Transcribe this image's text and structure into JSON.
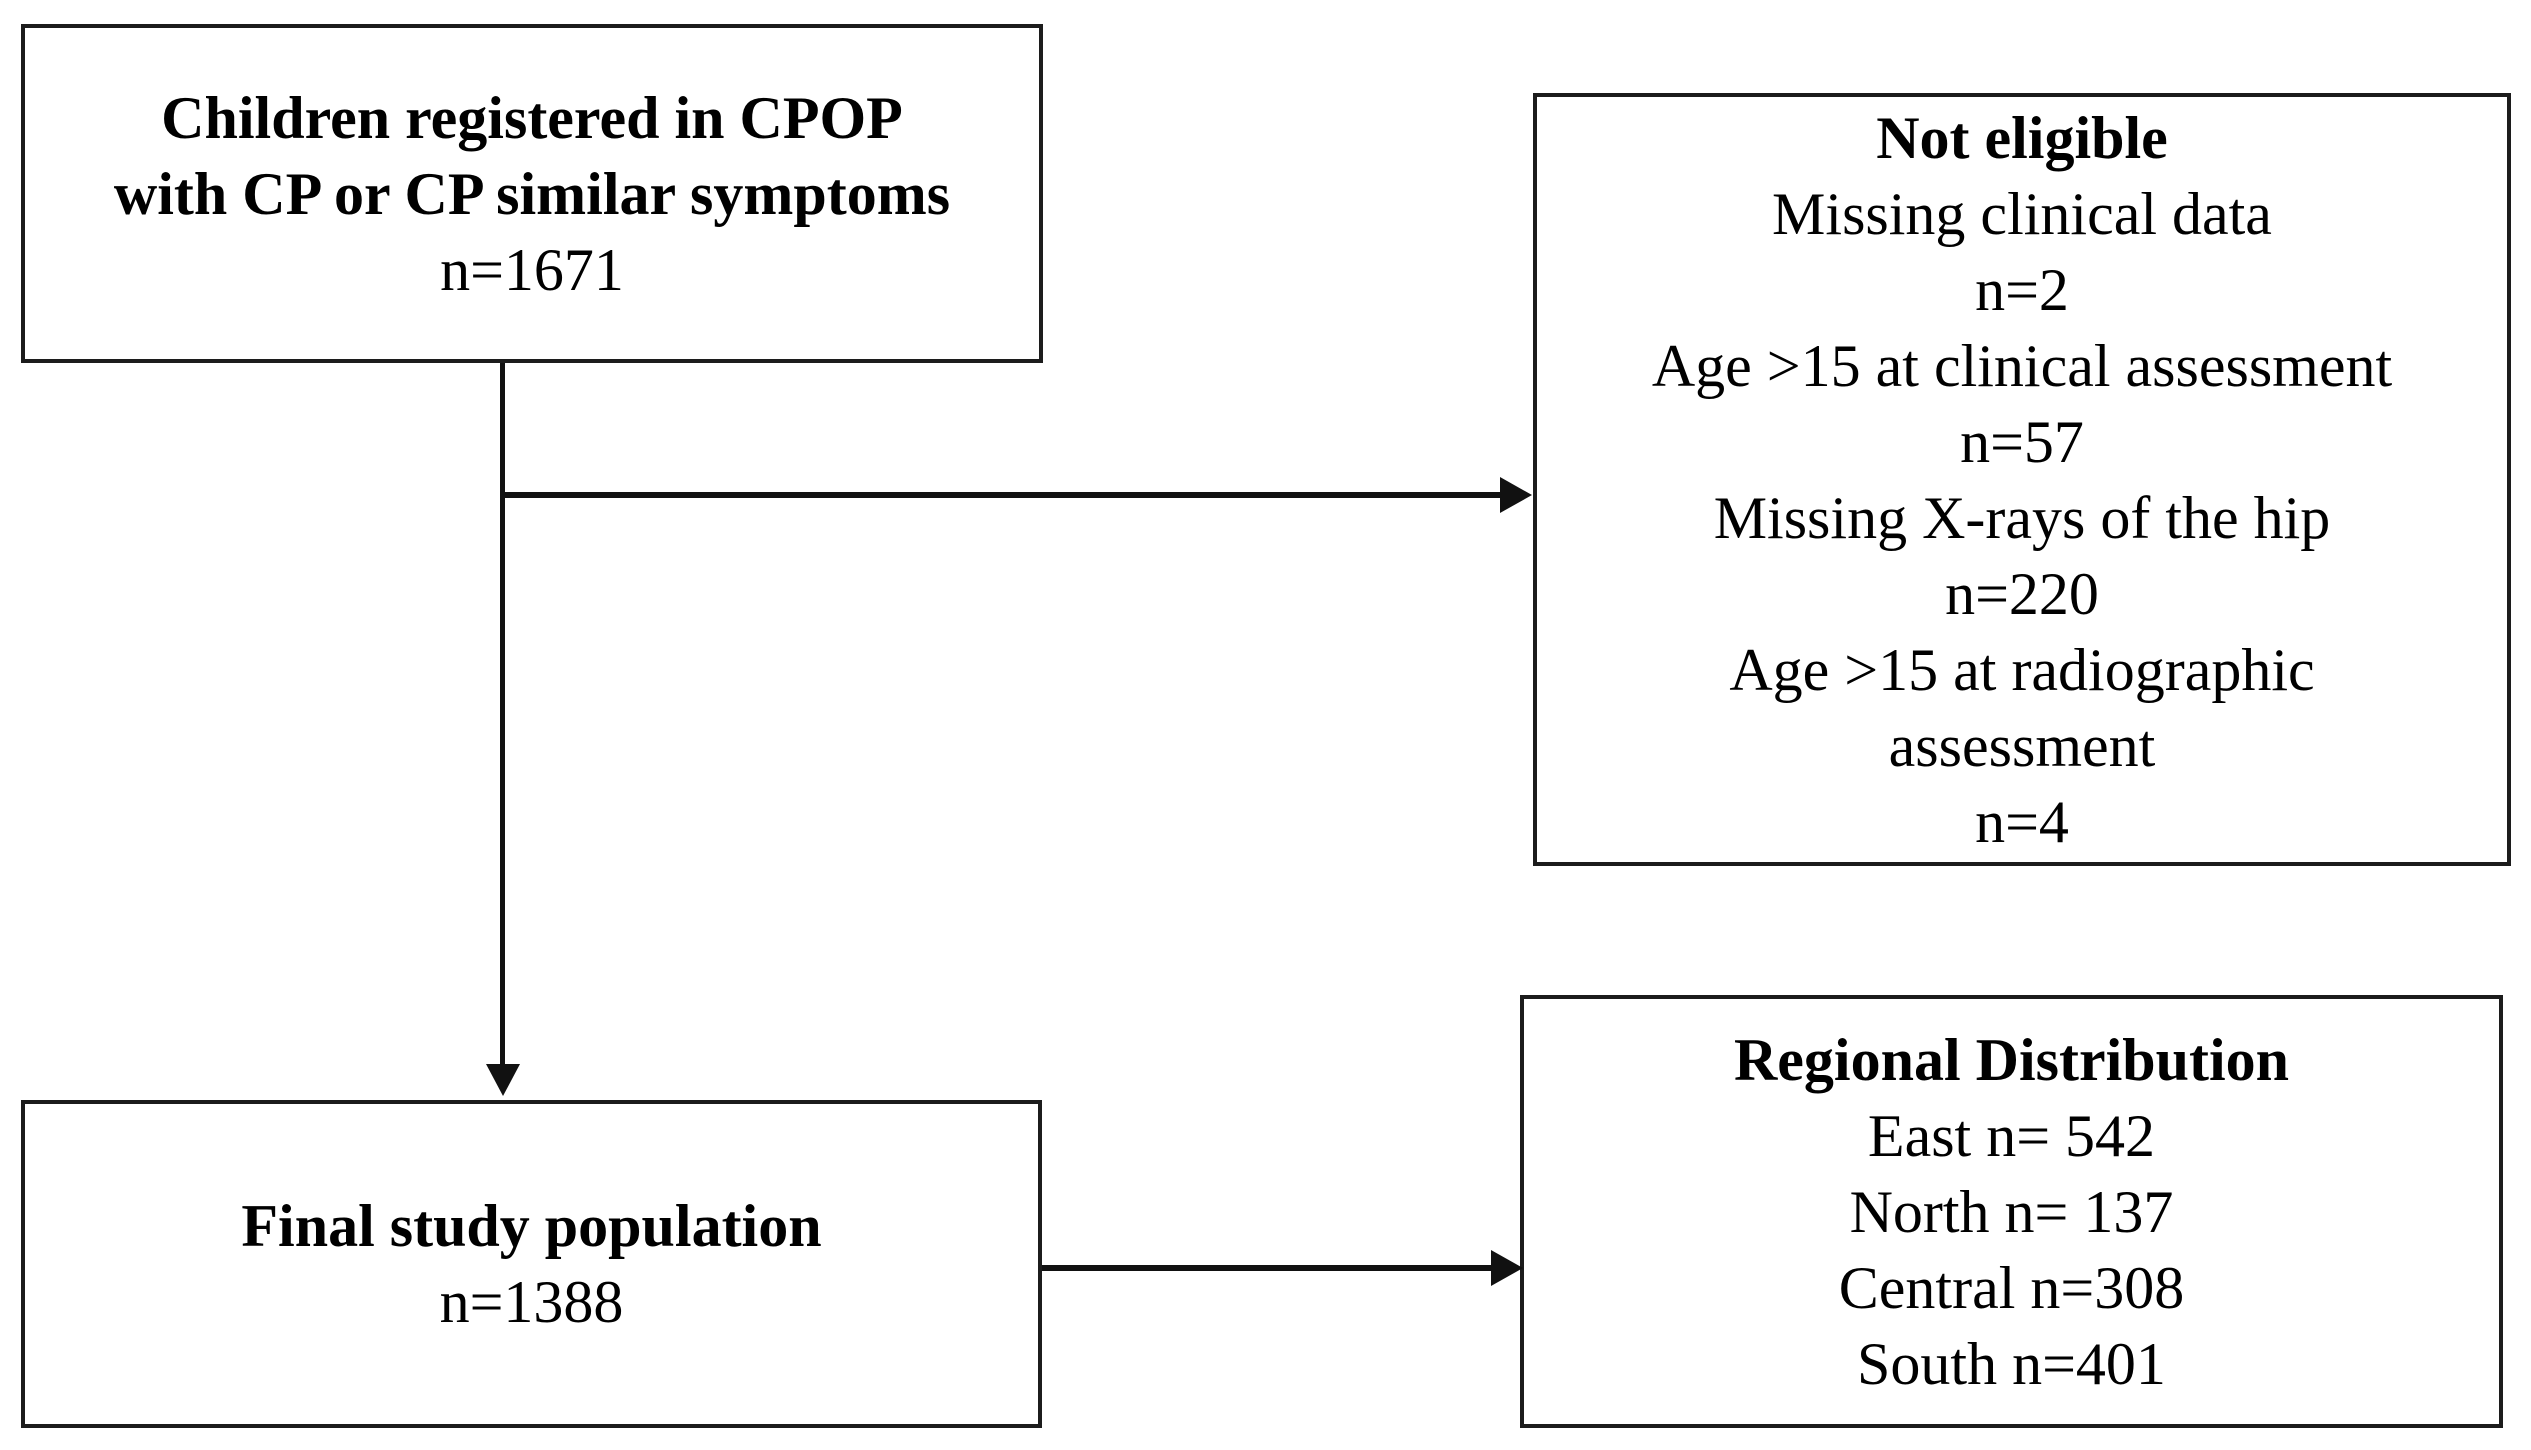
{
  "diagram": {
    "type": "study-flowchart",
    "colors": {
      "background": "#ffffff",
      "border": "#1c1c1c",
      "text": "#000000",
      "arrow": "#111111"
    },
    "boxes": {
      "registered": {
        "title_line1": "Children registered in CPOP",
        "title_line2": "with CP or CP similar symptoms",
        "count": "n=1671"
      },
      "not_eligible": {
        "title": "Not eligible",
        "lines": [
          "Missing clinical data",
          "n=2",
          "Age >15 at clinical assessment",
          "n=57",
          "Missing X-rays of the hip",
          "n=220",
          "Age >15 at radiographic",
          "assessment",
          "n=4"
        ]
      },
      "final": {
        "title": "Final study population",
        "count": "n=1388"
      },
      "regional": {
        "title": "Regional Distribution",
        "lines": [
          "East n= 542",
          "North n= 137",
          "Central n=308",
          "South n=401"
        ]
      }
    },
    "arrows": [
      "registered-to-final-down",
      "branch-to-not-eligible-right",
      "final-to-regional-right"
    ]
  }
}
